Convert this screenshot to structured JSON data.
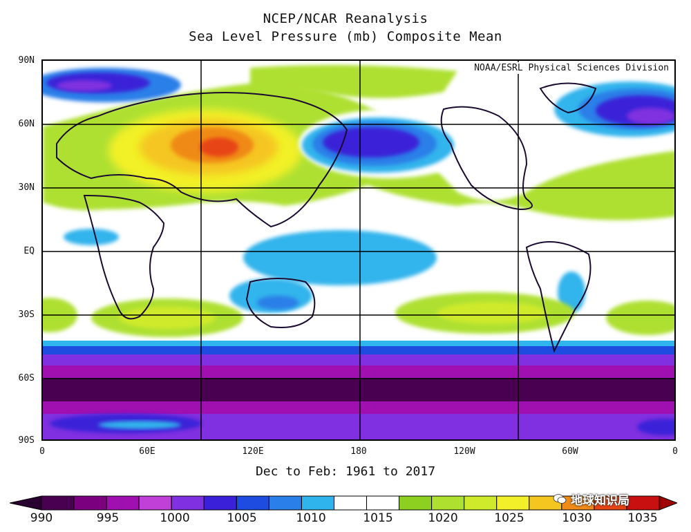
{
  "title": "NCEP/NCAR Reanalysis",
  "subtitle": "Sea Level Pressure (mb) Composite Mean",
  "credit": "NOAA/ESRL Physical Sciences Division",
  "period": "Dec to Feb: 1961 to 2017",
  "watermark": "地球知识局",
  "lat_labels": [
    "90N",
    "60N",
    "30N",
    "EQ",
    "30S",
    "60S",
    "90S"
  ],
  "lon_labels": [
    "0",
    "60E",
    "120E",
    "180",
    "120W",
    "60W",
    "0"
  ],
  "colorbar": {
    "colors": [
      "#4a0050",
      "#7a0080",
      "#a010b0",
      "#c040d8",
      "#8030e0",
      "#3a20d8",
      "#1e4ce0",
      "#2a7fe8",
      "#30b4ec",
      "#ffffff",
      "#ffffff",
      "#8ed020",
      "#aee030",
      "#cfea2a",
      "#f2f028",
      "#f5c520",
      "#f08a18",
      "#e84414",
      "#c81010"
    ],
    "labels": [
      "990",
      "995",
      "1000",
      "1005",
      "1010",
      "1015",
      "1020",
      "1025",
      "1030",
      "1035"
    ]
  },
  "map": {
    "grid_lon_step_deg": 60,
    "grid_lat_step_deg": 30,
    "features": [
      {
        "name": "siberian-high",
        "color": "#f08a18"
      },
      {
        "name": "aleutian-low",
        "color": "#3a20d8"
      },
      {
        "name": "icelandic-low",
        "color": "#3a20d8"
      },
      {
        "name": "antarctic-trough",
        "color": "#4a0050"
      },
      {
        "name": "subtropical-highs",
        "color": "#aee030"
      }
    ]
  }
}
